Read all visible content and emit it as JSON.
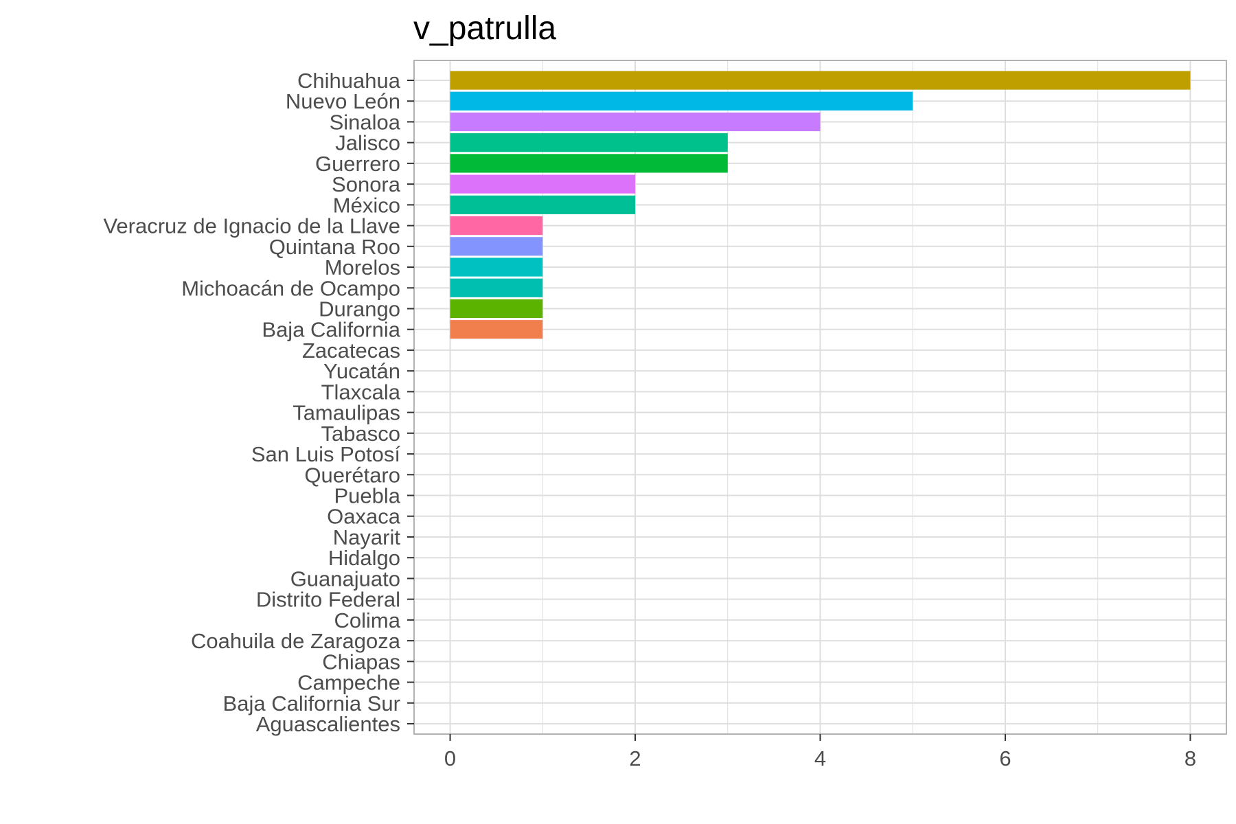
{
  "chart_data": {
    "type": "bar",
    "orientation": "horizontal",
    "title": "v_patrulla",
    "xlabel": "",
    "ylabel": "",
    "xlim": [
      -0.39,
      8.39
    ],
    "xticks": [
      0,
      2,
      4,
      6,
      8
    ],
    "grid": true,
    "legend": "none",
    "categories": [
      "Chihuahua",
      "Nuevo León",
      "Sinaloa",
      "Jalisco",
      "Guerrero",
      "Sonora",
      "México",
      "Veracruz de Ignacio de la Llave",
      "Quintana Roo",
      "Morelos",
      "Michoacán de Ocampo",
      "Durango",
      "Baja California",
      "Zacatecas",
      "Yucatán",
      "Tlaxcala",
      "Tamaulipas",
      "Tabasco",
      "San Luis Potosí",
      "Querétaro",
      "Puebla",
      "Oaxaca",
      "Nayarit",
      "Hidalgo",
      "Guanajuato",
      "Distrito Federal",
      "Colima",
      "Coahuila de Zaragoza",
      "Chiapas",
      "Campeche",
      "Baja California Sur",
      "Aguascalientes"
    ],
    "values": [
      8,
      5,
      4,
      3,
      3,
      2,
      2,
      1,
      1,
      1,
      1,
      1,
      1,
      0,
      0,
      0,
      0,
      0,
      0,
      0,
      0,
      0,
      0,
      0,
      0,
      0,
      0,
      0,
      0,
      0,
      0,
      0
    ],
    "colors": [
      "#BF9F00",
      "#00B8E6",
      "#C77CFF",
      "#00C08B",
      "#00BA38",
      "#DC71FA",
      "#00BF96",
      "#FF67A4",
      "#8494FF",
      "#00C1C1",
      "#00BFB0",
      "#5BB300",
      "#F07F4D",
      "#999999",
      "#999999",
      "#999999",
      "#999999",
      "#999999",
      "#999999",
      "#999999",
      "#999999",
      "#999999",
      "#999999",
      "#999999",
      "#999999",
      "#999999",
      "#999999",
      "#999999",
      "#999999",
      "#999999",
      "#999999",
      "#999999"
    ],
    "grid_color": "#dedede",
    "panel_border_color": "#b3b3b3"
  }
}
